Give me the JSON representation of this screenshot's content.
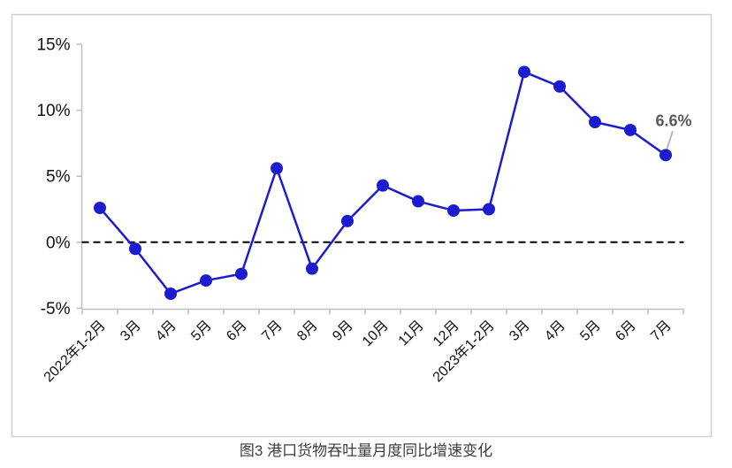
{
  "figure": {
    "caption": "图3 港口货物吞吐量月度同比增速变化"
  },
  "chart_data": {
    "type": "line",
    "title": "图3 港口货物吞吐量月度同比增速变化",
    "categories": [
      "2022年1-2月",
      "3月",
      "4月",
      "5月",
      "6月",
      "7月",
      "8月",
      "9月",
      "10月",
      "11月",
      "12月",
      "2023年1-2月",
      "3月",
      "4月",
      "5月",
      "6月",
      "7月"
    ],
    "series": [
      {
        "name": "港口货物吞吐量月度同比增速",
        "values": [
          2.6,
          -0.5,
          -3.9,
          -2.9,
          -2.4,
          5.6,
          -2.0,
          1.6,
          4.3,
          3.1,
          2.4,
          2.5,
          12.9,
          11.8,
          9.1,
          8.5,
          6.6
        ]
      }
    ],
    "xlabel": "",
    "ylabel": "",
    "ylim": [
      -5,
      15
    ],
    "yticks": [
      -5,
      0,
      5,
      10,
      15
    ],
    "ytick_labels": [
      "-5%",
      "0%",
      "5%",
      "10%",
      "15%"
    ],
    "grid": false,
    "legend": "none",
    "zero_line": true,
    "annotation": {
      "text": "6.6%",
      "target_index": 16
    },
    "colors": {
      "line": "#1C1CCE",
      "marker": "#1C1CCE",
      "zero_line": "#000000",
      "axis": "#BFBFBF",
      "frame": "#D0D0D0",
      "annotation_text": "#595959",
      "leader_line": "#B7B7B7"
    }
  }
}
